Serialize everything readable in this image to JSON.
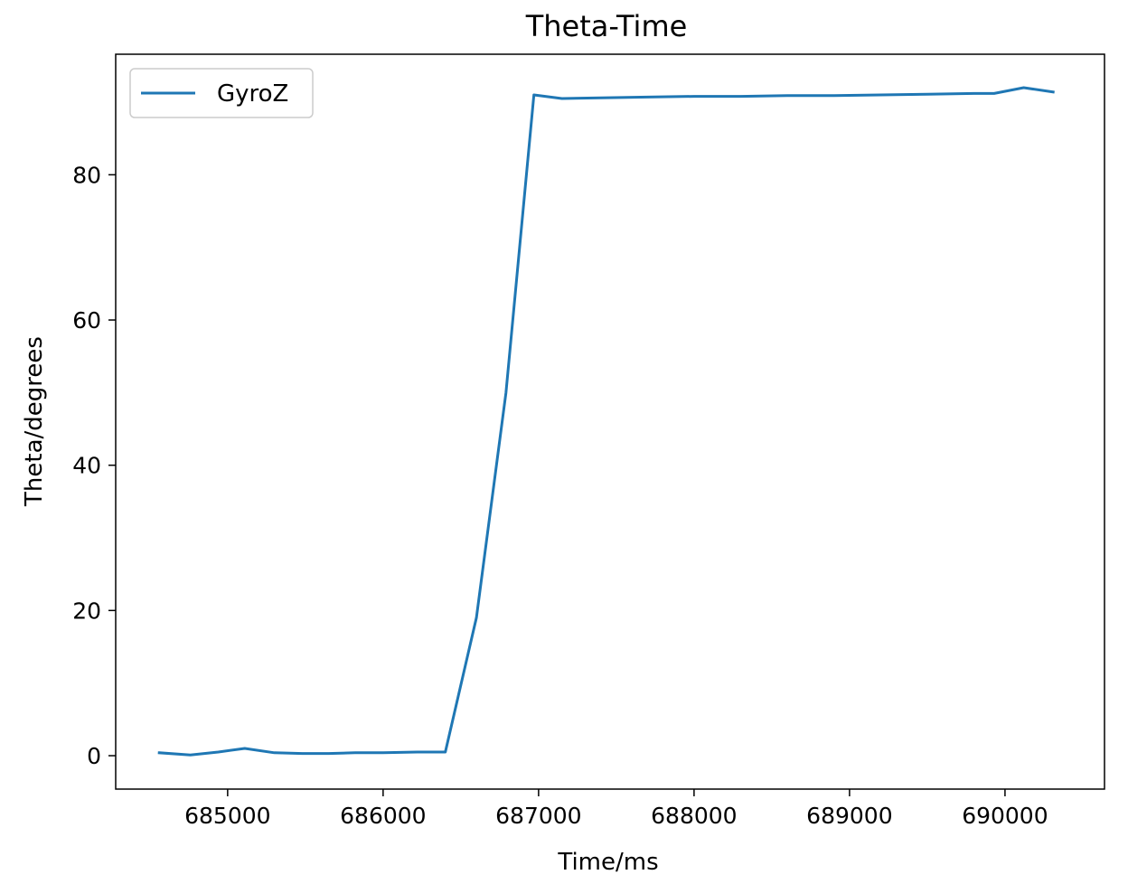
{
  "chart_data": {
    "type": "line",
    "title": "Theta-Time",
    "xlabel": "Time/ms",
    "ylabel": "Theta/degrees",
    "xlim": [
      684280,
      690640
    ],
    "ylim": [
      -4.6,
      96.6
    ],
    "xticks": [
      685000,
      686000,
      687000,
      688000,
      689000,
      690000
    ],
    "yticks": [
      0,
      20,
      40,
      60,
      80
    ],
    "grid": false,
    "legend_position": "upper-left",
    "series": [
      {
        "name": "GyroZ",
        "color": "#1f77b4",
        "x": [
          684560,
          684760,
          684940,
          685110,
          685300,
          685480,
          685650,
          685820,
          686000,
          686220,
          686400,
          686600,
          686790,
          686970,
          687150,
          687400,
          687700,
          688000,
          688300,
          688600,
          688900,
          689200,
          689500,
          689800,
          689930,
          690120,
          690310
        ],
        "y": [
          0.4,
          0.1,
          0.5,
          1.0,
          0.4,
          0.3,
          0.3,
          0.4,
          0.4,
          0.5,
          0.5,
          19.0,
          50.0,
          91.0,
          90.5,
          90.6,
          90.7,
          90.8,
          90.8,
          90.9,
          90.9,
          91.0,
          91.1,
          91.2,
          91.2,
          92.0,
          91.4
        ]
      }
    ]
  }
}
